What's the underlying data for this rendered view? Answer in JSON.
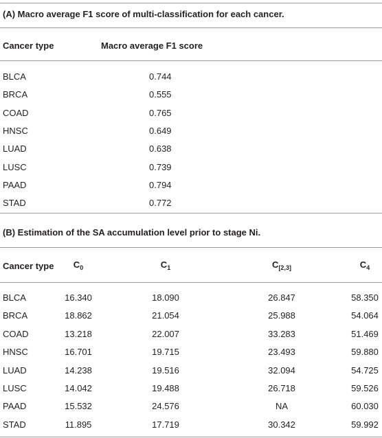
{
  "table_a": {
    "title": "(A) Macro average F1 score of multi-classification for each cancer.",
    "header": [
      "Cancer type",
      "Macro average F1 score"
    ],
    "rows": [
      [
        "BLCA",
        "0.744"
      ],
      [
        "BRCA",
        "0.555"
      ],
      [
        "COAD",
        "0.765"
      ],
      [
        "HNSC",
        "0.649"
      ],
      [
        "LUAD",
        "0.638"
      ],
      [
        "LUSC",
        "0.739"
      ],
      [
        "PAAD",
        "0.794"
      ],
      [
        "STAD",
        "0.772"
      ]
    ]
  },
  "table_b": {
    "title": "(B) Estimation of the SA accumulation level prior to stage Ni.",
    "header": [
      {
        "text": "Cancer type"
      },
      {
        "text": "C",
        "sub": "0"
      },
      {
        "text": "C",
        "sub": "1"
      },
      {
        "text": "C",
        "sub": "[2,3]"
      },
      {
        "text": "C",
        "sub": "4"
      }
    ],
    "rows": [
      [
        "BLCA",
        "16.340",
        "18.090",
        "26.847",
        "58.350"
      ],
      [
        "BRCA",
        "18.862",
        "21.054",
        "25.988",
        "54.064"
      ],
      [
        "COAD",
        "13.218",
        "22.007",
        "33.283",
        "51.469"
      ],
      [
        "HNSC",
        "16.701",
        "19.715",
        "23.493",
        "59.880"
      ],
      [
        "LUAD",
        "14.238",
        "19.516",
        "32.094",
        "54.725"
      ],
      [
        "LUSC",
        "14.042",
        "19.488",
        "26.718",
        "59.526"
      ],
      [
        "PAAD",
        "15.532",
        "24.576",
        "NA",
        "60.030"
      ],
      [
        "STAD",
        "11.895",
        "17.719",
        "30.342",
        "59.992"
      ]
    ]
  }
}
